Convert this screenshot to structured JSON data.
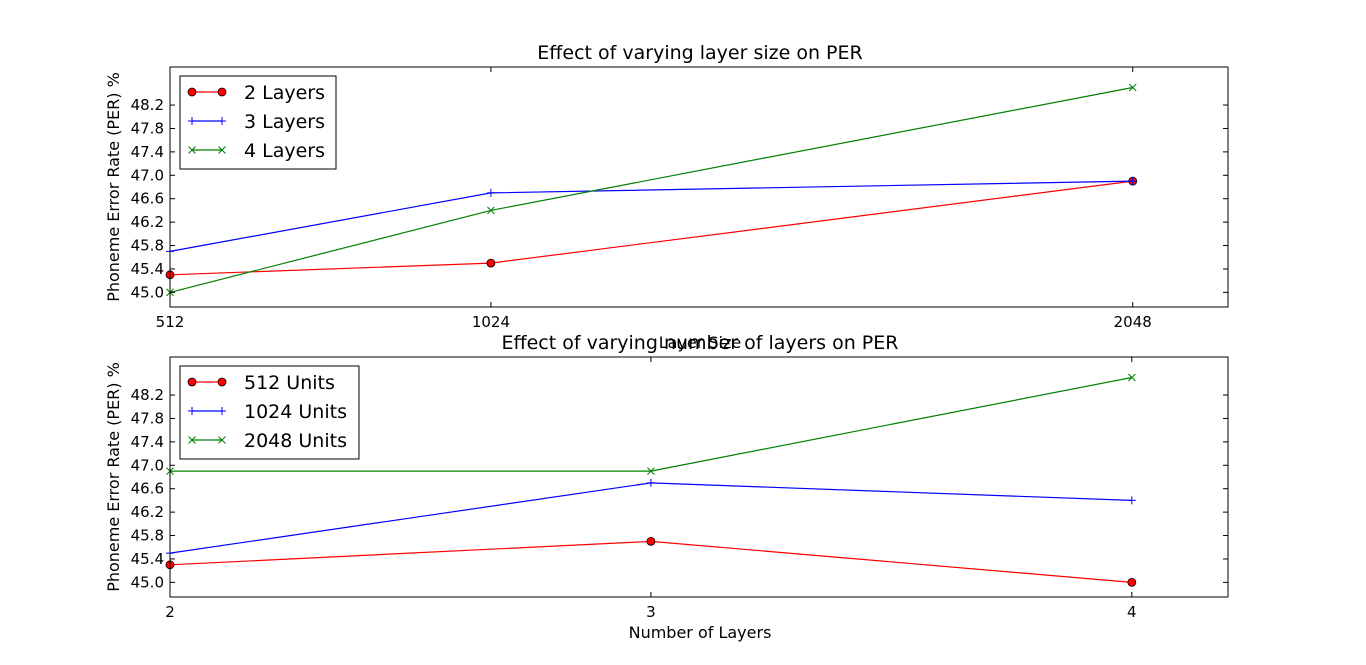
{
  "chart_data": [
    {
      "type": "line",
      "title": "Effect of varying layer size on PER",
      "xlabel": "Layer Size",
      "ylabel": "Phoneme Error Rate (PER) %",
      "x": [
        512,
        1024,
        2048
      ],
      "xticks": [
        "512",
        "1024",
        "2048"
      ],
      "xlim": [
        512,
        2200
      ],
      "ylim": [
        44.75,
        48.85
      ],
      "yticks": [
        "45.0",
        "45.4",
        "45.8",
        "46.2",
        "46.6",
        "47.0",
        "47.4",
        "47.8",
        "48.2"
      ],
      "legend": "upper-left",
      "grid": false,
      "series": [
        {
          "name": "2 Layers",
          "values": [
            45.3,
            45.5,
            46.9
          ],
          "color": "#ff0000",
          "marker": "circle"
        },
        {
          "name": "3 Layers",
          "values": [
            45.7,
            46.7,
            46.9
          ],
          "color": "#0000ff",
          "marker": "plus"
        },
        {
          "name": "4 Layers",
          "values": [
            45.0,
            46.4,
            48.5
          ],
          "color": "#008000",
          "marker": "x"
        }
      ]
    },
    {
      "type": "line",
      "title": "Effect of varying number of layers on PER",
      "xlabel": "Number of Layers",
      "ylabel": "Phoneme Error Rate (PER) %",
      "x": [
        2,
        3,
        4
      ],
      "xticks": [
        "2",
        "3",
        "4"
      ],
      "xlim": [
        2,
        4.2
      ],
      "ylim": [
        44.75,
        48.85
      ],
      "yticks": [
        "45.0",
        "45.4",
        "45.8",
        "46.2",
        "46.6",
        "47.0",
        "47.4",
        "47.8",
        "48.2"
      ],
      "legend": "upper-left",
      "grid": false,
      "series": [
        {
          "name": "512 Units",
          "values": [
            45.3,
            45.7,
            45.0
          ],
          "color": "#ff0000",
          "marker": "circle"
        },
        {
          "name": "1024 Units",
          "values": [
            45.5,
            46.7,
            46.4
          ],
          "color": "#0000ff",
          "marker": "plus"
        },
        {
          "name": "2048 Units",
          "values": [
            46.9,
            46.9,
            48.5
          ],
          "color": "#008000",
          "marker": "x"
        }
      ]
    }
  ]
}
